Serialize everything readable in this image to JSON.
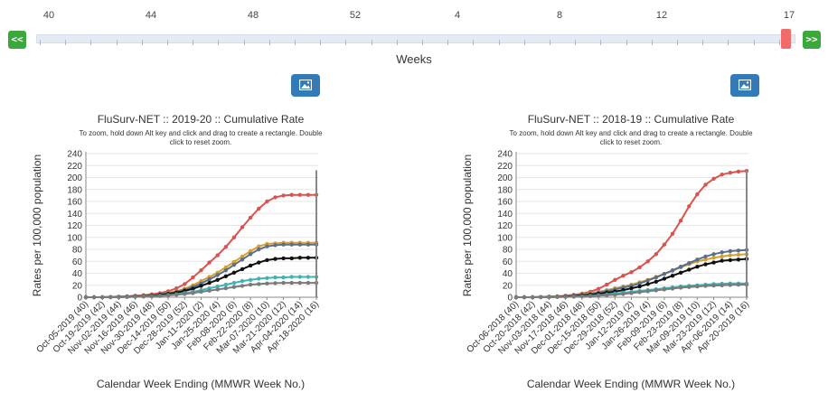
{
  "slider": {
    "prev_label": "<<",
    "next_label": ">>",
    "ticks": [
      "40",
      "44",
      "48",
      "52",
      "4",
      "8",
      "12",
      "17"
    ],
    "axis_title": "Weeks",
    "handle_color": "#f16b6b",
    "button_color": "#3aa83a",
    "icons": {
      "prev": "double-chevron-left-icon",
      "next": "double-chevron-right-icon",
      "image": "image-icon"
    }
  },
  "chart_data": [
    {
      "type": "line",
      "title": "FluSurv-NET :: 2019-20 :: Cumulative Rate",
      "subtitle": "To zoom, hold down Alt key and click and drag to create a rectangle. Double click to reset zoom.",
      "xlabel": "Calendar Week Ending (MMWR Week No.)",
      "ylabel": "Rates per 100,000 population",
      "ylim": [
        0,
        240
      ],
      "yticks": [
        0,
        20,
        40,
        60,
        80,
        100,
        120,
        140,
        160,
        180,
        200,
        220,
        240
      ],
      "xticklabels": [
        "Oct-05-2019 (40)",
        "Oct-19-2019 (42)",
        "Nov-02-2019 (44)",
        "Nov-16-2019 (46)",
        "Nov-30-2019 (48)",
        "Dec-14-2019 (50)",
        "Dec-28-2019 (52)",
        "Jan-11-2020 (2)",
        "Jan-25-2020 (4)",
        "Feb-08-2020 (6)",
        "Feb-22-2020 (8)",
        "Mar-07-2020 (10)",
        "Mar-21-2020 (12)",
        "Apr-04-2020 (14)",
        "Apr-18-2020 (16)"
      ],
      "cursor_index": 28,
      "series": [
        {
          "color": "#d9534f",
          "values": [
            0,
            0,
            0,
            0.5,
            1,
            1.5,
            2.5,
            3.5,
            5,
            7,
            10,
            15,
            22,
            33,
            45,
            58,
            70,
            84,
            100,
            117,
            133,
            148,
            160,
            167,
            170,
            171,
            171,
            171,
            171
          ]
        },
        {
          "color": "#d4a033",
          "values": [
            0,
            0,
            0,
            0.3,
            0.6,
            1,
            1.5,
            2.5,
            3.5,
            5,
            7,
            10,
            14,
            20,
            27,
            34,
            41,
            50,
            59,
            68,
            77,
            85,
            89,
            90,
            91,
            91,
            91,
            91,
            91
          ]
        },
        {
          "color": "#5a6f8c",
          "values": [
            0,
            0,
            0,
            0.3,
            0.5,
            1,
            1.5,
            2,
            3,
            4.5,
            6.5,
            9,
            12.5,
            17,
            23,
            30,
            37,
            45,
            54,
            63,
            72,
            80,
            85,
            87,
            88,
            88,
            88,
            88,
            88
          ]
        },
        {
          "color": "#111111",
          "values": [
            0,
            0,
            0,
            0.2,
            0.4,
            0.8,
            1.2,
            2,
            2.7,
            4,
            5.5,
            7.5,
            10.5,
            14,
            19,
            24,
            29,
            35,
            41,
            47,
            53,
            58,
            62,
            64,
            65,
            65,
            66,
            66,
            66
          ]
        },
        {
          "color": "#3eb4b6",
          "values": [
            0,
            0,
            0,
            0.1,
            0.3,
            0.5,
            0.8,
            1.3,
            1.8,
            2.6,
            3.6,
            5,
            7,
            9,
            12,
            15,
            18,
            21,
            24,
            27,
            29,
            31,
            32,
            33,
            33,
            34,
            34,
            34,
            34
          ]
        },
        {
          "color": "#7a7a7a",
          "values": [
            0,
            0,
            0,
            0.1,
            0.2,
            0.4,
            0.7,
            1,
            1.5,
            2.1,
            3,
            4,
            5.5,
            7,
            9,
            11,
            13,
            15,
            17,
            19,
            21,
            22,
            23,
            23.5,
            24,
            24,
            24,
            24,
            24
          ]
        }
      ]
    },
    {
      "type": "line",
      "title": "FluSurv-NET :: 2018-19 :: Cumulative Rate",
      "subtitle": "To zoom, hold down Alt key and click and drag to create a rectangle. Double click to reset zoom.",
      "xlabel": "Calendar Week Ending (MMWR Week No.)",
      "ylabel": "Rates per 100,000 population",
      "ylim": [
        0,
        240
      ],
      "yticks": [
        0,
        20,
        40,
        60,
        80,
        100,
        120,
        140,
        160,
        180,
        200,
        220,
        240
      ],
      "xticklabels": [
        "Oct-06-2018 (40)",
        "Oct-20-2018 (42)",
        "Nov-03-2018 (44)",
        "Nov-17-2018 (46)",
        "Dec-01-2018 (48)",
        "Dec-15-2018 (50)",
        "Dec-29-2018 (52)",
        "Jan-12-2019 (2)",
        "Jan-26-2019 (4)",
        "Feb-09-2019 (6)",
        "Feb-23-2019 (8)",
        "Mar-09-2019 (10)",
        "Mar-23-2019 (12)",
        "Apr-06-2019 (14)",
        "Apr-20-2019 (16)"
      ],
      "cursor_index": 28,
      "series": [
        {
          "color": "#d9534f",
          "values": [
            0,
            0,
            0,
            0.5,
            1,
            1.5,
            2.5,
            4,
            6,
            9,
            14,
            21,
            29,
            36,
            42,
            50,
            60,
            72,
            88,
            106,
            128,
            152,
            172,
            188,
            198,
            205,
            208,
            210,
            211
          ]
        },
        {
          "color": "#d4a033",
          "values": [
            0,
            0,
            0,
            0.4,
            0.8,
            1.2,
            2,
            3,
            4.5,
            6.5,
            9,
            12,
            15,
            18,
            21,
            25,
            29,
            34,
            39,
            44,
            50,
            55,
            60,
            63,
            66,
            68,
            70,
            71,
            72
          ]
        },
        {
          "color": "#5a6f8c",
          "values": [
            0,
            0,
            0,
            0.3,
            0.6,
            1,
            1.6,
            2.5,
            3.8,
            5.5,
            7.5,
            10,
            13,
            16,
            19,
            23,
            28,
            33,
            39,
            45,
            51,
            57,
            63,
            68,
            72,
            75,
            77,
            78,
            79
          ]
        },
        {
          "color": "#111111",
          "values": [
            0,
            0,
            0,
            0.2,
            0.4,
            0.8,
            1.3,
            2,
            3,
            4.2,
            5.8,
            7.5,
            9.5,
            12,
            15,
            18,
            22,
            26,
            31,
            36,
            41,
            46,
            51,
            55,
            58,
            61,
            62,
            63,
            64
          ]
        },
        {
          "color": "#3eb4b6",
          "values": [
            0,
            0,
            0,
            0.1,
            0.3,
            0.5,
            0.8,
            1.2,
            1.7,
            2.4,
            3.3,
            4.5,
            6,
            7.5,
            9,
            10.5,
            12,
            13.5,
            15,
            16.5,
            18,
            19,
            20,
            21,
            22,
            22.5,
            23,
            23,
            23
          ]
        },
        {
          "color": "#7a7a7a",
          "values": [
            0,
            0,
            0,
            0.1,
            0.2,
            0.4,
            0.6,
            0.9,
            1.3,
            1.8,
            2.5,
            3.3,
            4.3,
            5.5,
            7,
            8.5,
            10,
            11.5,
            13,
            14.5,
            16,
            17,
            18,
            19,
            19.5,
            20,
            20.5,
            21,
            21
          ]
        }
      ]
    }
  ]
}
